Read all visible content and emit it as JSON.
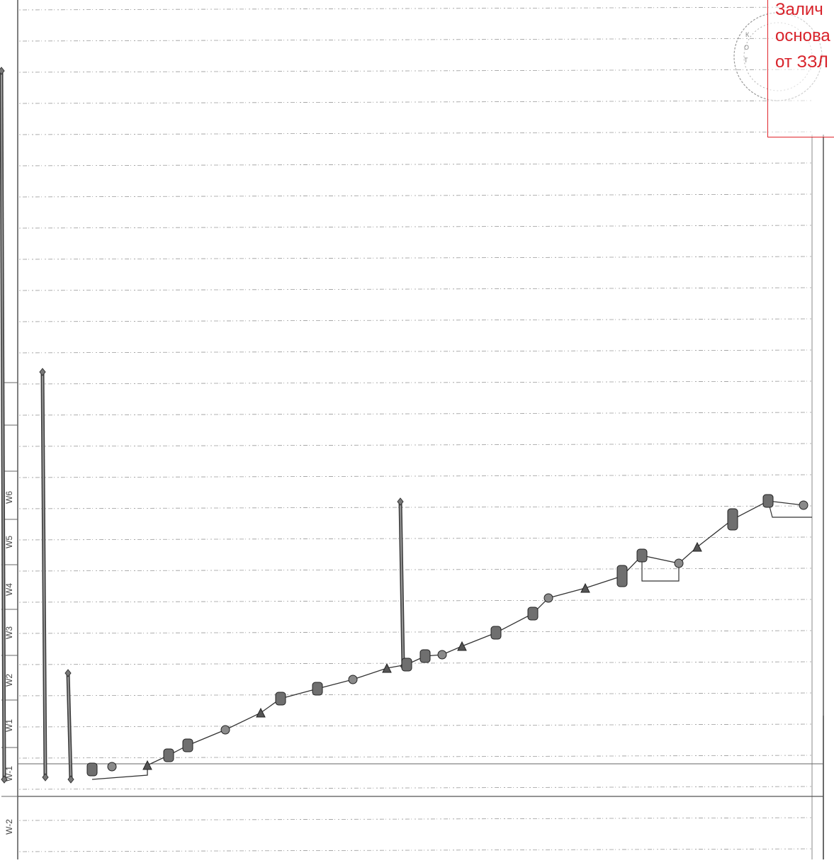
{
  "week_axis": {
    "labels": [
      "W-2",
      "W-1",
      "W1",
      "W2",
      "W3",
      "W4",
      "W5",
      "W6"
    ]
  },
  "overlay_note": {
    "lines": [
      "Залич",
      "основа",
      "от ЗЗЛ"
    ],
    "color": "#d8222a"
  },
  "seal": {
    "letters": [
      "К",
      "О",
      "Т"
    ]
  },
  "colors": {
    "grid": "#8a8a8a",
    "bars": "#333333",
    "tasks": "#555555",
    "stamp": "#e0262c"
  },
  "icons": [
    "summary-bar-icon",
    "task-node-icon",
    "milestone-diamond-icon",
    "connector-arrow-icon",
    "round-seal-icon"
  ]
}
